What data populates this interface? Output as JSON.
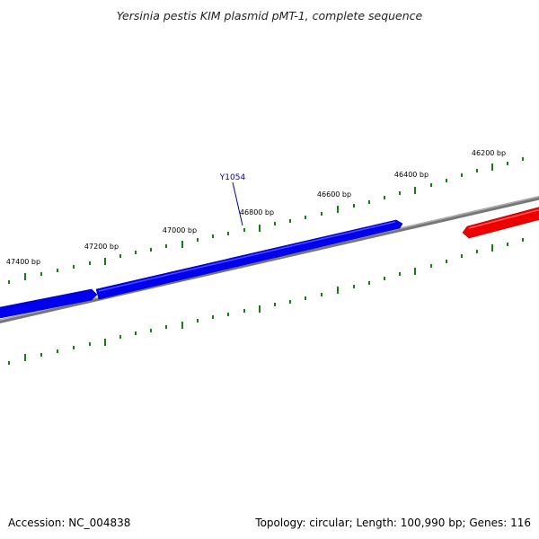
{
  "title": "Yersinia pestis KIM plasmid pMT-1, complete sequence",
  "footer": {
    "accession": "Accession: NC_004838",
    "summary": "Topology: circular; Length: 100,990 bp; Genes: 116"
  },
  "sequence": {
    "length_bp": 100990,
    "topology": "circular"
  },
  "ruler": {
    "labels": [
      "46200 bp",
      "46400 bp",
      "46600 bp",
      "46800 bp",
      "47000 bp",
      "47200 bp",
      "47400 bp"
    ]
  },
  "genes": [
    {
      "label": "Y1054",
      "strand": "reverse",
      "color": "#0000ee"
    }
  ],
  "colors": {
    "backbone": "#808080",
    "reverse_strand": "#0000ee",
    "forward_strand": "#ee0000",
    "ticks": "#1a7a1a",
    "gene_label": "#0000aa"
  }
}
